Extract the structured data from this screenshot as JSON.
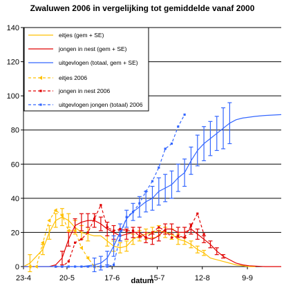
{
  "chart_data": {
    "type": "line",
    "title": "Zwaluwen 2006 in vergelijking tot gemiddelde vanaf 2000",
    "xlabel": "datum",
    "ylabel": "",
    "x_ticks": [
      "23-4",
      "20-5",
      "17-6",
      "15-7",
      "12-8",
      "9-9"
    ],
    "x_tick_days": [
      0,
      27,
      55,
      83,
      111,
      139
    ],
    "xlim": [
      0,
      160
    ],
    "ylim": [
      0,
      140
    ],
    "y_ticks": [
      0,
      20,
      40,
      60,
      80,
      100,
      120,
      140
    ],
    "grid": "horizontal",
    "legend_position": "top-left",
    "series": [
      {
        "name": "eitjes (gem + SE)",
        "color": "#FFC000",
        "style": "solid",
        "x": [
          0,
          4,
          8,
          12,
          16,
          20,
          24,
          28,
          32,
          36,
          40,
          44,
          48,
          52,
          56,
          60,
          64,
          68,
          72,
          76,
          80,
          84,
          88,
          92,
          96,
          100,
          104,
          108,
          112,
          116,
          120,
          124,
          128,
          132,
          136,
          140,
          144
        ],
        "y": [
          0,
          2,
          6,
          10,
          20,
          27,
          29,
          27,
          23,
          20,
          19,
          18,
          18,
          15,
          12,
          11,
          12,
          16,
          18,
          19,
          20,
          21,
          20,
          19,
          16,
          15,
          13,
          10,
          8,
          5,
          4,
          3,
          2,
          1,
          0.5,
          0,
          0
        ],
        "se": [
          [
            4,
            5
          ],
          [
            12,
            3
          ],
          [
            16,
            4
          ],
          [
            20,
            4
          ],
          [
            24,
            5
          ],
          [
            28,
            4
          ],
          [
            32,
            4
          ],
          [
            36,
            4
          ],
          [
            40,
            4
          ],
          [
            52,
            3
          ],
          [
            56,
            3
          ],
          [
            60,
            3
          ],
          [
            64,
            3
          ],
          [
            68,
            3
          ],
          [
            72,
            3
          ],
          [
            76,
            3
          ],
          [
            80,
            3
          ],
          [
            84,
            3
          ],
          [
            88,
            3
          ],
          [
            92,
            3
          ],
          [
            96,
            3
          ],
          [
            100,
            2
          ],
          [
            104,
            2
          ],
          [
            108,
            2
          ],
          [
            112,
            1.5
          ]
        ]
      },
      {
        "name": "jongen in nest (gem + SE)",
        "color": "#E00000",
        "style": "solid",
        "x": [
          0,
          4,
          8,
          12,
          16,
          20,
          24,
          28,
          32,
          36,
          40,
          44,
          48,
          52,
          56,
          60,
          64,
          68,
          72,
          76,
          80,
          84,
          88,
          92,
          96,
          100,
          104,
          108,
          112,
          116,
          120,
          124,
          128,
          132,
          136,
          140,
          144,
          150,
          160
        ],
        "y": [
          0,
          0,
          0,
          0,
          0,
          1,
          5,
          16,
          24,
          26,
          27,
          27,
          25,
          22,
          20,
          18,
          19,
          20,
          20,
          17,
          16,
          18,
          22,
          22,
          20,
          20,
          22,
          19,
          16,
          13,
          9,
          6,
          4,
          2,
          1,
          0.5,
          0.3,
          0,
          0
        ],
        "se": [
          [
            24,
            4
          ],
          [
            28,
            4
          ],
          [
            32,
            4
          ],
          [
            36,
            5
          ],
          [
            40,
            4
          ],
          [
            44,
            4
          ],
          [
            48,
            4
          ],
          [
            52,
            4
          ],
          [
            56,
            4
          ],
          [
            60,
            3
          ],
          [
            64,
            3
          ],
          [
            68,
            3
          ],
          [
            72,
            3
          ],
          [
            76,
            3
          ],
          [
            80,
            3
          ],
          [
            84,
            3
          ],
          [
            88,
            3
          ],
          [
            92,
            3
          ],
          [
            96,
            3
          ],
          [
            100,
            3
          ],
          [
            104,
            3
          ],
          [
            108,
            3
          ],
          [
            112,
            2
          ],
          [
            116,
            2
          ],
          [
            120,
            2
          ],
          [
            124,
            1
          ]
        ]
      },
      {
        "name": "uitgevlogen (totaal, gem + SE)",
        "color": "#3366FF",
        "style": "solid",
        "x": [
          0,
          4,
          8,
          12,
          16,
          20,
          24,
          28,
          32,
          36,
          40,
          44,
          48,
          52,
          56,
          60,
          64,
          68,
          72,
          76,
          80,
          84,
          88,
          92,
          96,
          100,
          104,
          108,
          112,
          116,
          120,
          124,
          128,
          132,
          136,
          140,
          144,
          150,
          160
        ],
        "y": [
          0,
          0,
          0,
          0,
          0,
          0,
          0,
          0,
          0,
          0,
          0.5,
          1,
          2,
          5,
          12,
          20,
          28,
          32,
          35,
          38,
          40,
          44,
          46,
          48,
          52,
          55,
          62,
          68,
          72,
          75,
          78,
          81,
          84,
          86,
          87,
          87.5,
          88,
          88.5,
          89
        ],
        "se": [
          [
            44,
            4
          ],
          [
            48,
            4
          ],
          [
            52,
            4
          ],
          [
            56,
            6
          ],
          [
            60,
            5
          ],
          [
            64,
            5
          ],
          [
            68,
            5
          ],
          [
            72,
            6
          ],
          [
            76,
            6
          ],
          [
            80,
            7
          ],
          [
            84,
            8
          ],
          [
            88,
            8
          ],
          [
            92,
            8
          ],
          [
            96,
            8
          ],
          [
            100,
            8
          ],
          [
            104,
            8
          ],
          [
            108,
            9
          ],
          [
            112,
            10
          ],
          [
            116,
            10
          ],
          [
            120,
            10
          ],
          [
            124,
            12
          ],
          [
            128,
            12
          ]
        ]
      },
      {
        "name": "eitjes 2006",
        "color": "#FFC000",
        "style": "dashed",
        "x": [
          4,
          8,
          12,
          16,
          20,
          24,
          28,
          32,
          36,
          40,
          44
        ],
        "y": [
          0,
          0,
          14,
          27,
          33,
          30,
          21,
          21,
          11,
          5,
          0
        ]
      },
      {
        "name": "jongen in nest 2006",
        "color": "#E00000",
        "style": "dashed",
        "x": [
          20,
          24,
          28,
          32,
          36,
          40,
          44,
          48,
          52,
          56,
          60,
          64,
          68,
          72,
          76,
          80,
          84,
          88,
          92,
          96,
          100,
          104,
          108,
          112
        ],
        "y": [
          0,
          0,
          3,
          14,
          16,
          20,
          28,
          36,
          23,
          21,
          22,
          21,
          21,
          18,
          17,
          20,
          23,
          21,
          17,
          18,
          17,
          24,
          31,
          19
        ]
      },
      {
        "name": "uitgevlogen jongen (totaal) 2006",
        "color": "#3366FF",
        "style": "dashed",
        "x": [
          20,
          24,
          28,
          32,
          36,
          40,
          44,
          48,
          52,
          56,
          60,
          64,
          68,
          72,
          76,
          80,
          84,
          88,
          92,
          96,
          100
        ],
        "y": [
          0,
          0,
          0,
          0,
          0,
          0,
          0,
          0,
          0,
          1,
          18,
          29,
          32,
          37,
          44,
          50,
          58,
          69,
          72,
          82,
          89
        ]
      }
    ]
  }
}
